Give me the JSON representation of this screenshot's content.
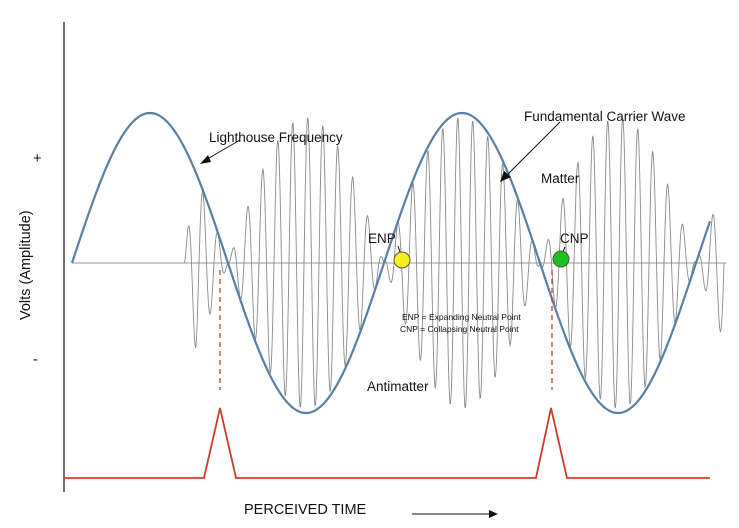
{
  "axes": {
    "y_label": "Volts (Amplitude)",
    "plus_sign": "+",
    "minus_sign": "-",
    "x_label": "PERCEIVED TIME"
  },
  "labels": {
    "lighthouse": "Lighthouse Frequency",
    "carrier": "Fundamental Carrier Wave",
    "matter": "Matter",
    "antimatter": "Antimatter",
    "enp": "ENP",
    "cnp": "CNP"
  },
  "legend": {
    "enp_def": "ENP = Expanding Neutral Point",
    "cnp_def": "CNP = Collapsing Neutral Point"
  },
  "colors": {
    "carrier": "#5a7fa3",
    "lighthouse": "#8a8a8a",
    "pulse": "#c8402a",
    "enp_marker": "#f2f21e",
    "cnp_marker": "#19c21c",
    "axis": "#111111"
  },
  "markers": {
    "enp": "yellow-circle",
    "cnp": "green-circle"
  }
}
